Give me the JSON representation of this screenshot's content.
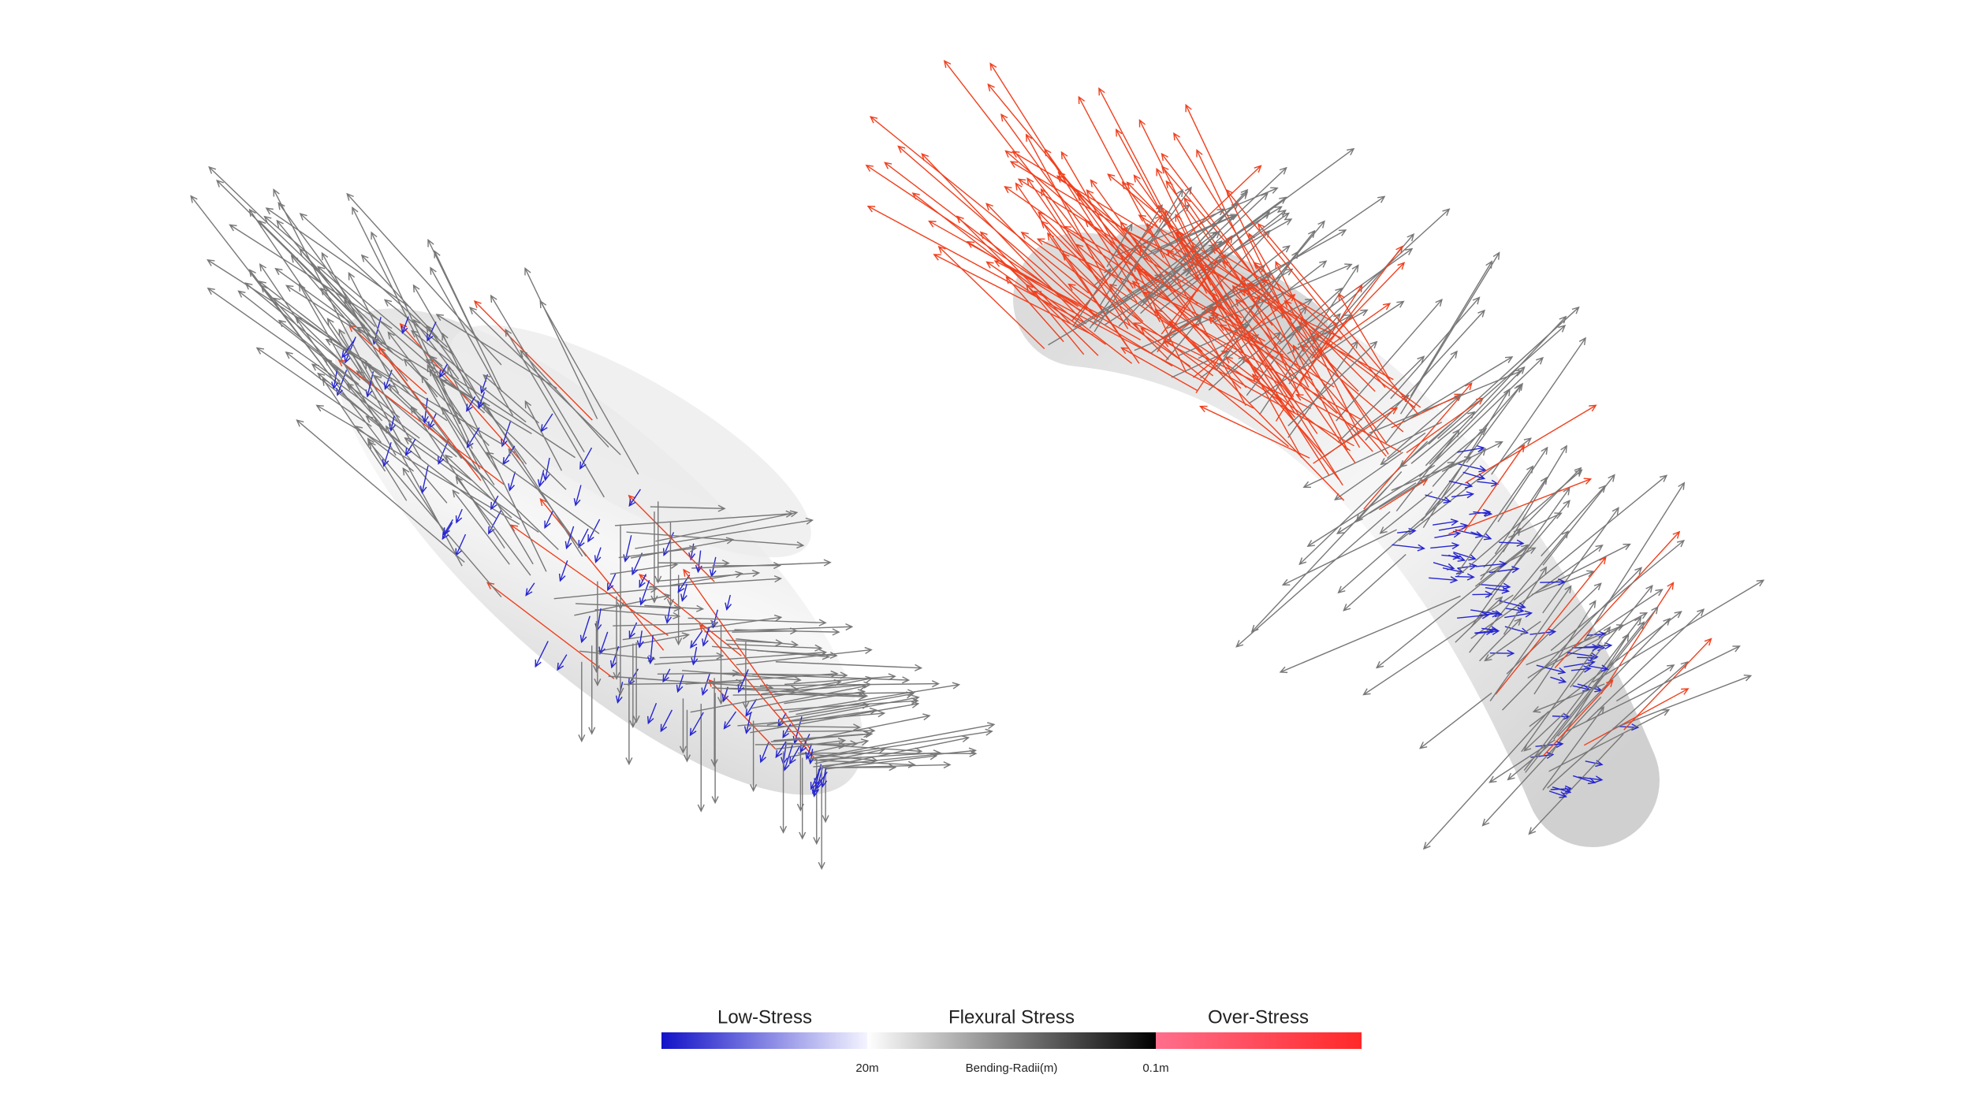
{
  "legend": {
    "low_stress": "Low-Stress",
    "flexural_stress": "Flexural Stress",
    "over_stress": "Over-Stress",
    "min_label": "20m",
    "axis_label": "Bending-Radii(m)",
    "max_label": "0.1m"
  }
}
